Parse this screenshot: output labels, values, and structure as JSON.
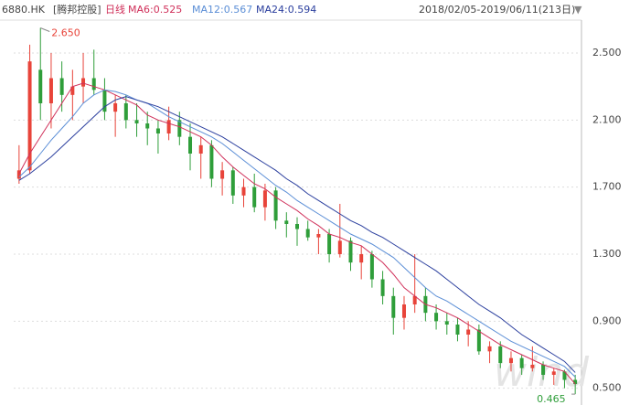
{
  "chart_data": {
    "type": "candlestick",
    "ticker": "6880.HK",
    "name": "[腾邦控股]",
    "period": "日线",
    "date_range": "2018/02/05-2019/06/11(213日)",
    "watermark": "wind",
    "up_color": "#e8443a",
    "down_color": "#2f9e3a",
    "ohlc": [
      [
        1.75,
        1.95,
        1.72,
        1.8
      ],
      [
        1.8,
        2.55,
        1.78,
        2.45
      ],
      [
        2.4,
        2.65,
        2.1,
        2.2
      ],
      [
        2.2,
        2.5,
        2.05,
        2.35
      ],
      [
        2.35,
        2.45,
        2.15,
        2.25
      ],
      [
        2.25,
        2.4,
        2.1,
        2.3
      ],
      [
        2.3,
        2.5,
        2.2,
        2.35
      ],
      [
        2.35,
        2.52,
        2.25,
        2.28
      ],
      [
        2.28,
        2.35,
        2.1,
        2.15
      ],
      [
        2.15,
        2.25,
        2.0,
        2.2
      ],
      [
        2.2,
        2.25,
        2.05,
        2.1
      ],
      [
        2.1,
        2.2,
        2.0,
        2.08
      ],
      [
        2.08,
        2.15,
        1.95,
        2.05
      ],
      [
        2.05,
        2.1,
        1.9,
        2.02
      ],
      [
        2.02,
        2.18,
        1.98,
        2.1
      ],
      [
        2.1,
        2.15,
        1.95,
        2.0
      ],
      [
        2.0,
        2.08,
        1.8,
        1.9
      ],
      [
        1.9,
        2.0,
        1.75,
        1.95
      ],
      [
        1.95,
        1.98,
        1.7,
        1.75
      ],
      [
        1.75,
        1.85,
        1.65,
        1.8
      ],
      [
        1.8,
        1.82,
        1.6,
        1.65
      ],
      [
        1.65,
        1.75,
        1.58,
        1.7
      ],
      [
        1.7,
        1.78,
        1.55,
        1.58
      ],
      [
        1.58,
        1.72,
        1.5,
        1.68
      ],
      [
        1.68,
        1.7,
        1.45,
        1.5
      ],
      [
        1.5,
        1.55,
        1.4,
        1.48
      ],
      [
        1.48,
        1.52,
        1.35,
        1.45
      ],
      [
        1.45,
        1.5,
        1.38,
        1.4
      ],
      [
        1.4,
        1.45,
        1.3,
        1.42
      ],
      [
        1.42,
        1.45,
        1.25,
        1.3
      ],
      [
        1.3,
        1.6,
        1.28,
        1.38
      ],
      [
        1.38,
        1.4,
        1.2,
        1.25
      ],
      [
        1.25,
        1.35,
        1.15,
        1.3
      ],
      [
        1.3,
        1.32,
        1.1,
        1.15
      ],
      [
        1.15,
        1.2,
        1.0,
        1.05
      ],
      [
        1.05,
        1.1,
        0.82,
        0.92
      ],
      [
        0.92,
        1.05,
        0.85,
        1.0
      ],
      [
        1.0,
        1.3,
        0.95,
        1.05
      ],
      [
        1.05,
        1.1,
        0.9,
        0.95
      ],
      [
        0.95,
        1.0,
        0.85,
        0.9
      ],
      [
        0.9,
        0.95,
        0.82,
        0.88
      ],
      [
        0.88,
        0.92,
        0.78,
        0.82
      ],
      [
        0.82,
        0.9,
        0.75,
        0.85
      ],
      [
        0.85,
        0.88,
        0.7,
        0.72
      ],
      [
        0.72,
        0.78,
        0.65,
        0.75
      ],
      [
        0.75,
        0.78,
        0.62,
        0.65
      ],
      [
        0.65,
        0.72,
        0.6,
        0.68
      ],
      [
        0.68,
        0.7,
        0.58,
        0.62
      ],
      [
        0.62,
        0.75,
        0.6,
        0.64
      ],
      [
        0.64,
        0.66,
        0.55,
        0.58
      ],
      [
        0.58,
        0.62,
        0.52,
        0.6
      ],
      [
        0.6,
        0.61,
        0.5,
        0.55
      ],
      [
        0.55,
        0.58,
        0.465,
        0.525
      ]
    ],
    "series": [
      {
        "name": "MA6:0.525",
        "color": "#d0305a",
        "values": [
          1.78,
          1.9,
          2.0,
          2.1,
          2.2,
          2.3,
          2.32,
          2.3,
          2.28,
          2.25,
          2.22,
          2.19,
          2.13,
          2.1,
          2.08,
          2.06,
          2.03,
          2.0,
          1.95,
          1.88,
          1.82,
          1.77,
          1.72,
          1.69,
          1.64,
          1.6,
          1.56,
          1.51,
          1.47,
          1.42,
          1.4,
          1.37,
          1.35,
          1.3,
          1.25,
          1.18,
          1.1,
          1.05,
          1.0,
          0.98,
          0.95,
          0.92,
          0.88,
          0.84,
          0.8,
          0.76,
          0.73,
          0.7,
          0.67,
          0.64,
          0.62,
          0.6,
          0.525
        ]
      },
      {
        "name": "MA12:0.567",
        "color": "#5b8ed6",
        "values": [
          1.76,
          1.82,
          1.9,
          1.98,
          2.05,
          2.12,
          2.2,
          2.25,
          2.28,
          2.27,
          2.25,
          2.22,
          2.2,
          2.16,
          2.12,
          2.09,
          2.06,
          2.03,
          2.0,
          1.96,
          1.91,
          1.86,
          1.81,
          1.76,
          1.71,
          1.67,
          1.62,
          1.58,
          1.54,
          1.5,
          1.46,
          1.42,
          1.39,
          1.36,
          1.32,
          1.28,
          1.22,
          1.16,
          1.1,
          1.05,
          1.02,
          0.98,
          0.94,
          0.9,
          0.86,
          0.82,
          0.78,
          0.75,
          0.72,
          0.69,
          0.66,
          0.63,
          0.567
        ]
      },
      {
        "name": "MA24:0.594",
        "color": "#2b3f9e",
        "values": [
          1.74,
          1.78,
          1.83,
          1.88,
          1.94,
          2.0,
          2.06,
          2.12,
          2.18,
          2.22,
          2.24,
          2.22,
          2.2,
          2.18,
          2.15,
          2.12,
          2.09,
          2.06,
          2.03,
          2.0,
          1.96,
          1.92,
          1.88,
          1.84,
          1.8,
          1.75,
          1.71,
          1.66,
          1.62,
          1.58,
          1.54,
          1.5,
          1.47,
          1.43,
          1.4,
          1.36,
          1.32,
          1.28,
          1.24,
          1.2,
          1.15,
          1.1,
          1.05,
          1.0,
          0.96,
          0.92,
          0.87,
          0.82,
          0.78,
          0.74,
          0.7,
          0.66,
          0.594
        ]
      }
    ],
    "max_label": {
      "value": 2.65,
      "label": "2.650"
    },
    "min_label": {
      "value": 0.465,
      "label": "0.465"
    },
    "ylim": [
      0.4,
      2.68
    ],
    "yticks": [
      {
        "value": 0.5,
        "label": "0.500"
      },
      {
        "value": 0.9,
        "label": "0.900"
      },
      {
        "value": 1.3,
        "label": "1.300"
      },
      {
        "value": 1.7,
        "label": "1.700"
      },
      {
        "value": 2.1,
        "label": "2.100"
      },
      {
        "value": 2.5,
        "label": "2.500"
      }
    ],
    "grid": true
  }
}
